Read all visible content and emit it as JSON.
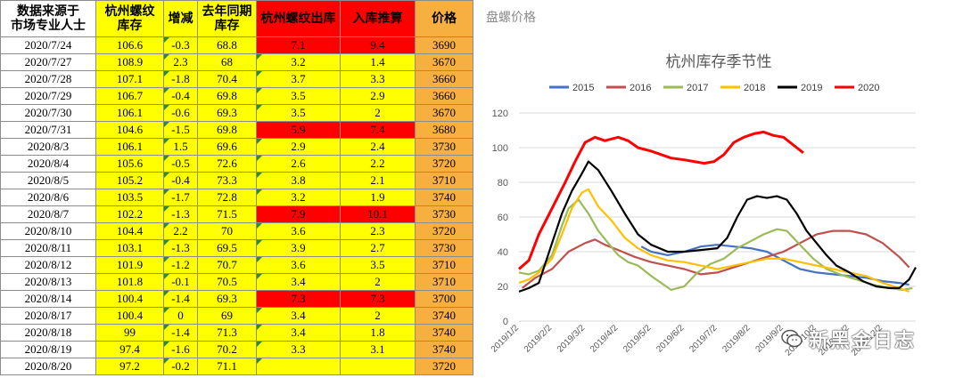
{
  "table": {
    "headers": [
      "数据来源于\n市场专业人士",
      "杭州螺纹\n库存",
      "增减",
      "去年同期\n库存",
      "杭州螺纹出库",
      "入库推算",
      "价格"
    ],
    "extra_header": "盘螺价格",
    "rows": [
      {
        "date": "2020/7/24",
        "inv": "106.6",
        "chg": "-0.3",
        "ly": "68.8",
        "out": "7.1",
        "inb": "9.4",
        "price": "3690",
        "hot": true
      },
      {
        "date": "2020/7/27",
        "inv": "108.9",
        "chg": "2.3",
        "ly": "68",
        "out": "3.2",
        "inb": "1.4",
        "price": "3670",
        "hot": false
      },
      {
        "date": "2020/7/28",
        "inv": "107.1",
        "chg": "-1.8",
        "ly": "70.4",
        "out": "3.7",
        "inb": "3.3",
        "price": "3660",
        "hot": false
      },
      {
        "date": "2020/7/29",
        "inv": "106.7",
        "chg": "-0.4",
        "ly": "69.8",
        "out": "3.5",
        "inb": "2.9",
        "price": "3660",
        "hot": false
      },
      {
        "date": "2020/7/30",
        "inv": "106.1",
        "chg": "-0.6",
        "ly": "69.3",
        "out": "3.5",
        "inb": "2",
        "price": "3670",
        "hot": false
      },
      {
        "date": "2020/7/31",
        "inv": "104.6",
        "chg": "-1.5",
        "ly": "69.8",
        "out": "5.9",
        "inb": "7.4",
        "price": "3680",
        "hot": true
      },
      {
        "date": "2020/8/3",
        "inv": "106.1",
        "chg": "1.5",
        "ly": "69.6",
        "out": "2.9",
        "inb": "2.4",
        "price": "3730",
        "hot": false
      },
      {
        "date": "2020/8/4",
        "inv": "105.6",
        "chg": "-0.5",
        "ly": "72.6",
        "out": "2.6",
        "inb": "2.2",
        "price": "3720",
        "hot": false
      },
      {
        "date": "2020/8/5",
        "inv": "105.2",
        "chg": "-0.4",
        "ly": "73.3",
        "out": "3.8",
        "inb": "2.1",
        "price": "3710",
        "hot": false
      },
      {
        "date": "2020/8/6",
        "inv": "103.5",
        "chg": "-1.7",
        "ly": "72.8",
        "out": "3.2",
        "inb": "1.9",
        "price": "3740",
        "hot": false
      },
      {
        "date": "2020/8/7",
        "inv": "102.2",
        "chg": "-1.3",
        "ly": "71.5",
        "out": "7.9",
        "inb": "10.1",
        "price": "3730",
        "hot": true
      },
      {
        "date": "2020/8/10",
        "inv": "104.4",
        "chg": "2.2",
        "ly": "70",
        "out": "3.6",
        "inb": "2.3",
        "price": "3720",
        "hot": false
      },
      {
        "date": "2020/8/11",
        "inv": "103.1",
        "chg": "-1.3",
        "ly": "69.5",
        "out": "3.9",
        "inb": "2.7",
        "price": "3730",
        "hot": false
      },
      {
        "date": "2020/8/12",
        "inv": "101.9",
        "chg": "-1.2",
        "ly": "70.7",
        "out": "3.6",
        "inb": "3.5",
        "price": "3710",
        "hot": false
      },
      {
        "date": "2020/8/13",
        "inv": "101.8",
        "chg": "-0.1",
        "ly": "70.5",
        "out": "3.4",
        "inb": "2",
        "price": "3710",
        "hot": false
      },
      {
        "date": "2020/8/14",
        "inv": "100.4",
        "chg": "-1.4",
        "ly": "69.3",
        "out": "7.3",
        "inb": "7.3",
        "price": "3700",
        "hot": true
      },
      {
        "date": "2020/8/17",
        "inv": "100.4",
        "chg": "0",
        "ly": "69",
        "out": "3.4",
        "inb": "2",
        "price": "3740",
        "hot": false
      },
      {
        "date": "2020/8/18",
        "inv": "99",
        "chg": "-1.4",
        "ly": "71.3",
        "out": "3.4",
        "inb": "1.8",
        "price": "3740",
        "hot": false
      },
      {
        "date": "2020/8/19",
        "inv": "97.4",
        "chg": "-1.6",
        "ly": "70.2",
        "out": "3.3",
        "inb": "3.1",
        "price": "3740",
        "hot": false
      },
      {
        "date": "2020/8/20",
        "inv": "97.2",
        "chg": "-0.2",
        "ly": "71.1",
        "out": "",
        "inb": "",
        "price": "3720",
        "hot": false
      }
    ]
  },
  "watermark": {
    "text": "新黑金日志",
    "icon": "wechat-icon"
  },
  "colors": {
    "yellow": "#ffff00",
    "red": "#ff0000",
    "orange": "#f7b040"
  },
  "chart_data": {
    "type": "line",
    "title": "杭州库存季节性",
    "xlabel": "",
    "ylabel": "",
    "ylim": [
      0,
      120
    ],
    "yticks": [
      0,
      20,
      40,
      60,
      80,
      100,
      120
    ],
    "x_ticks": [
      "2019/1/2",
      "2019/2/2",
      "2019/3/2",
      "2019/4/2",
      "2019/5/2",
      "2019/6/2",
      "2019/7/2",
      "2019/8/2",
      "2019/9/2",
      "2019/10/2",
      "2019/11/2",
      "2019/12/2"
    ],
    "x_domain": [
      0,
      12
    ],
    "grid": true,
    "legend": "top",
    "series": [
      {
        "name": "2015",
        "color": "#4472c4",
        "points": [
          [
            3.7,
            43
          ],
          [
            4.0,
            40
          ],
          [
            4.5,
            38
          ],
          [
            5.0,
            40
          ],
          [
            5.5,
            43
          ],
          [
            6.0,
            44
          ],
          [
            6.5,
            43
          ],
          [
            7.0,
            42
          ],
          [
            7.5,
            40
          ],
          [
            8.0,
            35
          ],
          [
            8.5,
            30
          ],
          [
            9.0,
            28
          ],
          [
            9.5,
            27
          ],
          [
            10.0,
            26
          ],
          [
            10.5,
            25
          ],
          [
            11.0,
            23
          ],
          [
            11.5,
            22
          ],
          [
            11.8,
            21
          ]
        ]
      },
      {
        "name": "2016",
        "color": "#c0504d",
        "points": [
          [
            0.1,
            19
          ],
          [
            0.5,
            25
          ],
          [
            1.0,
            30
          ],
          [
            1.5,
            40
          ],
          [
            2.0,
            45
          ],
          [
            2.3,
            47
          ],
          [
            2.6,
            44
          ],
          [
            3.0,
            41
          ],
          [
            3.5,
            37
          ],
          [
            4.0,
            34
          ],
          [
            4.5,
            32
          ],
          [
            5.0,
            30
          ],
          [
            5.5,
            27
          ],
          [
            6.0,
            28
          ],
          [
            6.5,
            31
          ],
          [
            7.0,
            34
          ],
          [
            7.5,
            37
          ],
          [
            8.0,
            40
          ],
          [
            8.5,
            45
          ],
          [
            9.0,
            50
          ],
          [
            9.5,
            52
          ],
          [
            10.0,
            52
          ],
          [
            10.5,
            50
          ],
          [
            11.0,
            45
          ],
          [
            11.5,
            37
          ],
          [
            11.8,
            31
          ]
        ]
      },
      {
        "name": "2017",
        "color": "#9bbb59",
        "points": [
          [
            0.0,
            28
          ],
          [
            0.3,
            27
          ],
          [
            0.6,
            29
          ],
          [
            1.0,
            38
          ],
          [
            1.3,
            55
          ],
          [
            1.5,
            65
          ],
          [
            1.8,
            70
          ],
          [
            2.1,
            62
          ],
          [
            2.4,
            52
          ],
          [
            2.7,
            45
          ],
          [
            3.0,
            38
          ],
          [
            3.3,
            34
          ],
          [
            3.6,
            32
          ],
          [
            4.0,
            26
          ],
          [
            4.3,
            22
          ],
          [
            4.6,
            18
          ],
          [
            5.0,
            20
          ],
          [
            5.4,
            28
          ],
          [
            5.8,
            33
          ],
          [
            6.2,
            36
          ],
          [
            6.6,
            42
          ],
          [
            7.0,
            46
          ],
          [
            7.4,
            50
          ],
          [
            7.8,
            53
          ],
          [
            8.1,
            52
          ],
          [
            8.5,
            44
          ],
          [
            8.9,
            36
          ],
          [
            9.3,
            30
          ],
          [
            9.7,
            27
          ],
          [
            10.2,
            24
          ],
          [
            10.7,
            21
          ],
          [
            11.2,
            19
          ],
          [
            11.6,
            18
          ],
          [
            11.9,
            19
          ]
        ]
      },
      {
        "name": "2018",
        "color": "#ffc000",
        "points": [
          [
            0.0,
            22
          ],
          [
            0.3,
            24
          ],
          [
            0.6,
            28
          ],
          [
            1.0,
            36
          ],
          [
            1.3,
            50
          ],
          [
            1.6,
            65
          ],
          [
            1.9,
            74
          ],
          [
            2.1,
            76
          ],
          [
            2.4,
            66
          ],
          [
            2.8,
            58
          ],
          [
            3.2,
            48
          ],
          [
            3.6,
            42
          ],
          [
            4.0,
            38
          ],
          [
            4.5,
            35
          ],
          [
            5.0,
            34
          ],
          [
            5.5,
            32
          ],
          [
            6.0,
            30
          ],
          [
            6.5,
            32
          ],
          [
            7.0,
            34
          ],
          [
            7.5,
            36
          ],
          [
            8.0,
            36
          ],
          [
            8.5,
            34
          ],
          [
            9.0,
            32
          ],
          [
            9.5,
            30
          ],
          [
            10.0,
            28
          ],
          [
            10.5,
            26
          ],
          [
            11.0,
            22
          ],
          [
            11.5,
            19
          ],
          [
            11.8,
            17
          ]
        ]
      },
      {
        "name": "2019",
        "color": "#000000",
        "points": [
          [
            0.0,
            17
          ],
          [
            0.3,
            19
          ],
          [
            0.6,
            22
          ],
          [
            1.0,
            45
          ],
          [
            1.3,
            62
          ],
          [
            1.6,
            75
          ],
          [
            1.9,
            85
          ],
          [
            2.1,
            92
          ],
          [
            2.4,
            87
          ],
          [
            2.8,
            75
          ],
          [
            3.2,
            62
          ],
          [
            3.6,
            50
          ],
          [
            4.0,
            44
          ],
          [
            4.5,
            40
          ],
          [
            5.0,
            40
          ],
          [
            5.5,
            41
          ],
          [
            6.0,
            42
          ],
          [
            6.3,
            48
          ],
          [
            6.6,
            60
          ],
          [
            6.9,
            70
          ],
          [
            7.2,
            72
          ],
          [
            7.5,
            71
          ],
          [
            7.8,
            72
          ],
          [
            8.1,
            70
          ],
          [
            8.4,
            62
          ],
          [
            8.7,
            52
          ],
          [
            9.0,
            45
          ],
          [
            9.3,
            38
          ],
          [
            9.6,
            32
          ],
          [
            10.0,
            28
          ],
          [
            10.4,
            23
          ],
          [
            10.8,
            20
          ],
          [
            11.2,
            19
          ],
          [
            11.5,
            19
          ],
          [
            11.8,
            24
          ],
          [
            12.0,
            31
          ]
        ]
      },
      {
        "name": "2020",
        "color": "#ff0000",
        "points": [
          [
            0.0,
            30
          ],
          [
            0.3,
            35
          ],
          [
            0.6,
            50
          ],
          [
            1.0,
            65
          ],
          [
            1.4,
            80
          ],
          [
            1.7,
            92
          ],
          [
            2.0,
            103
          ],
          [
            2.3,
            106
          ],
          [
            2.6,
            104
          ],
          [
            3.0,
            106
          ],
          [
            3.3,
            104
          ],
          [
            3.6,
            100
          ],
          [
            4.0,
            98
          ],
          [
            4.3,
            96
          ],
          [
            4.6,
            94
          ],
          [
            5.0,
            93
          ],
          [
            5.3,
            92
          ],
          [
            5.6,
            91
          ],
          [
            5.9,
            92
          ],
          [
            6.2,
            96
          ],
          [
            6.5,
            103
          ],
          [
            6.8,
            106
          ],
          [
            7.1,
            108
          ],
          [
            7.4,
            109
          ],
          [
            7.7,
            107
          ],
          [
            8.0,
            106
          ],
          [
            8.2,
            103
          ],
          [
            8.4,
            100
          ],
          [
            8.6,
            97
          ]
        ]
      }
    ]
  }
}
